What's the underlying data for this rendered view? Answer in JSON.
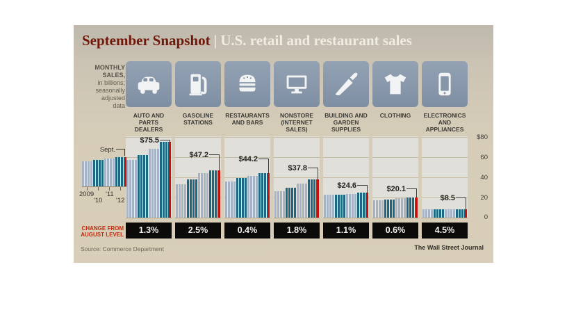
{
  "header": {
    "title": "September Snapshot",
    "separator": "|",
    "subtitle": "U.S. retail and restaurant sales"
  },
  "note": {
    "lines": [
      "MONTHLY",
      "SALES,",
      "in billions;",
      "seasonally",
      "adjusted",
      "data"
    ]
  },
  "legend": {
    "sept_label": "Sept.",
    "year_labels_row1": [
      "2009",
      "'11"
    ],
    "year_labels_row2": [
      "'10",
      "'12"
    ]
  },
  "y_axis": {
    "ticks": [
      "$80",
      "60",
      "40",
      "20",
      "0"
    ]
  },
  "change_label": {
    "line1": "CHANGE FROM",
    "line2": "AUGUST LEVEL"
  },
  "footer": {
    "source": "Source: Commerce Department",
    "credit": "The Wall Street Journal"
  },
  "chart_data": {
    "type": "bar",
    "title": "September Snapshot | U.S. retail and restaurant sales",
    "subtitle": "Monthly sales, in billions; seasonally adjusted data",
    "years": [
      "2009",
      "2010",
      "2011",
      "2012"
    ],
    "highlight_month": "Sept. 2012",
    "ylim": [
      0,
      80
    ],
    "y_tick_values": [
      80,
      60,
      40,
      20,
      0
    ],
    "grid": true,
    "categories": [
      {
        "label": "AUTO AND PARTS DEALERS",
        "icon": "car-icon",
        "value": 75.5,
        "value_label": "$75.5",
        "change_from_august": "1.3%",
        "yearly_trend": [
          57,
          62,
          68,
          75.5
        ]
      },
      {
        "label": "GASOLINE STATIONS",
        "icon": "fuel-pump-icon",
        "value": 47.2,
        "value_label": "$47.2",
        "change_from_august": "2.5%",
        "yearly_trend": [
          33,
          38,
          44,
          47.2
        ]
      },
      {
        "label": "RESTAURANTS AND BARS",
        "icon": "burger-icon",
        "value": 44.2,
        "value_label": "$44.2",
        "change_from_august": "0.4%",
        "yearly_trend": [
          36,
          39,
          41.5,
          44.2
        ]
      },
      {
        "label": "NONSTORE (INTERNET SALES)",
        "icon": "monitor-icon",
        "value": 37.8,
        "value_label": "$37.8",
        "change_from_august": "1.8%",
        "yearly_trend": [
          26.5,
          29.5,
          33.5,
          37.8
        ]
      },
      {
        "label": "BUILDING AND GARDEN SUPPLIES",
        "icon": "trowel-icon",
        "value": 24.6,
        "value_label": "$24.6",
        "change_from_august": "1.1%",
        "yearly_trend": [
          23,
          22.5,
          23.5,
          24.6
        ]
      },
      {
        "label": "CLOTHING",
        "icon": "tshirt-icon",
        "value": 20.1,
        "value_label": "$20.1",
        "change_from_august": "0.6%",
        "yearly_trend": [
          17.2,
          18,
          19,
          20.1
        ]
      },
      {
        "label": "ELECTRONICS AND APPLIANCES",
        "icon": "phone-icon",
        "value": 8.5,
        "value_label": "$8.5",
        "change_from_august": "4.5%",
        "yearly_trend": [
          8.1,
          8.3,
          8.4,
          8.5
        ]
      }
    ],
    "colors": {
      "bar_light": "#a6b3c4",
      "bar_dark": "#1c6781",
      "highlight_red": "#c8100d",
      "tile_blue": "#8695a8",
      "panel": "#e1dfd9",
      "gridline": "#c6bca4",
      "background": "#d5ccb8",
      "change_box": "#0d0b09",
      "title_red": "#72180a"
    }
  }
}
